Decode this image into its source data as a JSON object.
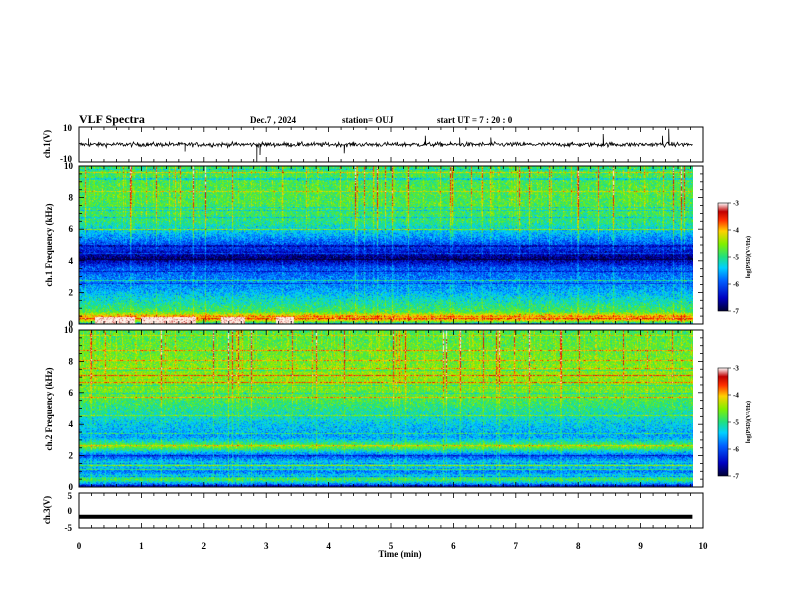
{
  "header": {
    "title": "VLF Spectra",
    "date": "Dec.7 , 2024",
    "station": "station= OUJ",
    "start": "start UT = 7 : 20 : 0"
  },
  "colors": {
    "colormap": [
      "#000033",
      "#0000b0",
      "#0050ff",
      "#00c8ff",
      "#30e0a0",
      "#66ee33",
      "#c8f000",
      "#ffd000",
      "#ff4000",
      "#cc0000",
      "#ffe0e0",
      "#ffffff"
    ],
    "trace": "#000000"
  },
  "chart_data": [
    {
      "type": "line",
      "name": "ch1-waveform",
      "ylabel": "ch.1(V)",
      "ylim": [
        -10,
        10
      ],
      "y_tick_labels": [
        "10",
        "-10"
      ],
      "xlim": [
        0,
        10
      ],
      "baseline": 0,
      "noise_amplitude": 1.2,
      "spikes": [
        {
          "x": 0.15,
          "y": 3.5
        },
        {
          "x": 1.7,
          "y": -4
        },
        {
          "x": 2.85,
          "y": -10
        },
        {
          "x": 2.9,
          "y": -6
        },
        {
          "x": 4.25,
          "y": -5
        },
        {
          "x": 5.55,
          "y": 5
        },
        {
          "x": 6.1,
          "y": 4
        },
        {
          "x": 6.6,
          "y": 4
        },
        {
          "x": 8.4,
          "y": 6
        },
        {
          "x": 9.35,
          "y": 5
        },
        {
          "x": 9.45,
          "y": 9
        }
      ]
    },
    {
      "type": "heatmap",
      "name": "ch1-spectrogram",
      "ylabel": "ch.1 Frequency (kHz)",
      "ylim": [
        0,
        10
      ],
      "y_ticks": [
        0,
        2,
        4,
        6,
        8,
        10
      ],
      "xlim": [
        0,
        10
      ],
      "colorbar": {
        "label": "log(PSD)(V²/Hz)",
        "range": [
          -7,
          -3
        ],
        "ticks": [
          -3,
          -4,
          -5,
          -6,
          -7
        ]
      },
      "profile": [
        {
          "f": 0.0,
          "v": -5.5
        },
        {
          "f": 0.4,
          "v": -3.5
        },
        {
          "f": 0.8,
          "v": -4.8
        },
        {
          "f": 1.5,
          "v": -5.2
        },
        {
          "f": 2.2,
          "v": -5.6
        },
        {
          "f": 3.0,
          "v": -5.8
        },
        {
          "f": 3.6,
          "v": -6.0
        },
        {
          "f": 4.2,
          "v": -6.8
        },
        {
          "f": 4.8,
          "v": -6.2
        },
        {
          "f": 5.6,
          "v": -5.6
        },
        {
          "f": 6.5,
          "v": -5.0
        },
        {
          "f": 7.5,
          "v": -4.8
        },
        {
          "f": 8.5,
          "v": -4.8
        },
        {
          "f": 10.0,
          "v": -4.9
        }
      ],
      "bright_band": {
        "f_min": 0.0,
        "f_max": 0.45,
        "v": -3.0,
        "segments": [
          [
            0.25,
            0.9
          ],
          [
            1.0,
            1.9
          ],
          [
            2.3,
            2.7
          ],
          [
            3.2,
            3.5
          ]
        ]
      }
    },
    {
      "type": "heatmap",
      "name": "ch2-spectrogram",
      "ylabel": "ch.2 Frequency (kHz)",
      "ylim": [
        0,
        10
      ],
      "y_ticks": [
        0,
        2,
        4,
        6,
        8,
        10
      ],
      "xlim": [
        0,
        10
      ],
      "colorbar": {
        "label": "log(PSD)(V²/Hz)",
        "range": [
          -7,
          -3
        ],
        "ticks": [
          -3,
          -4,
          -5,
          -6,
          -7
        ]
      },
      "profile": [
        {
          "f": 0.0,
          "v": -6.5
        },
        {
          "f": 0.5,
          "v": -4.8
        },
        {
          "f": 1.0,
          "v": -5.8
        },
        {
          "f": 1.5,
          "v": -5.2
        },
        {
          "f": 2.0,
          "v": -6.0
        },
        {
          "f": 2.6,
          "v": -4.6
        },
        {
          "f": 3.2,
          "v": -5.6
        },
        {
          "f": 4.0,
          "v": -5.4
        },
        {
          "f": 5.0,
          "v": -5.0
        },
        {
          "f": 6.0,
          "v": -4.7
        },
        {
          "f": 7.0,
          "v": -4.5
        },
        {
          "f": 8.0,
          "v": -4.6
        },
        {
          "f": 9.0,
          "v": -4.7
        },
        {
          "f": 10.0,
          "v": -4.8
        }
      ]
    },
    {
      "type": "line",
      "name": "ch3-waveform",
      "ylabel": "ch.3(V)",
      "ylim": [
        -5,
        5
      ],
      "y_tick_labels": [
        "5",
        "0",
        "-5"
      ],
      "xlim": [
        0,
        10
      ],
      "xlabel": "Time (min)",
      "x_ticks": [
        "0",
        "1",
        "2",
        "3",
        "4",
        "5",
        "6",
        "7",
        "8",
        "9",
        "10"
      ],
      "data_x_range": [
        0,
        9.83
      ],
      "value": -1.8
    }
  ]
}
